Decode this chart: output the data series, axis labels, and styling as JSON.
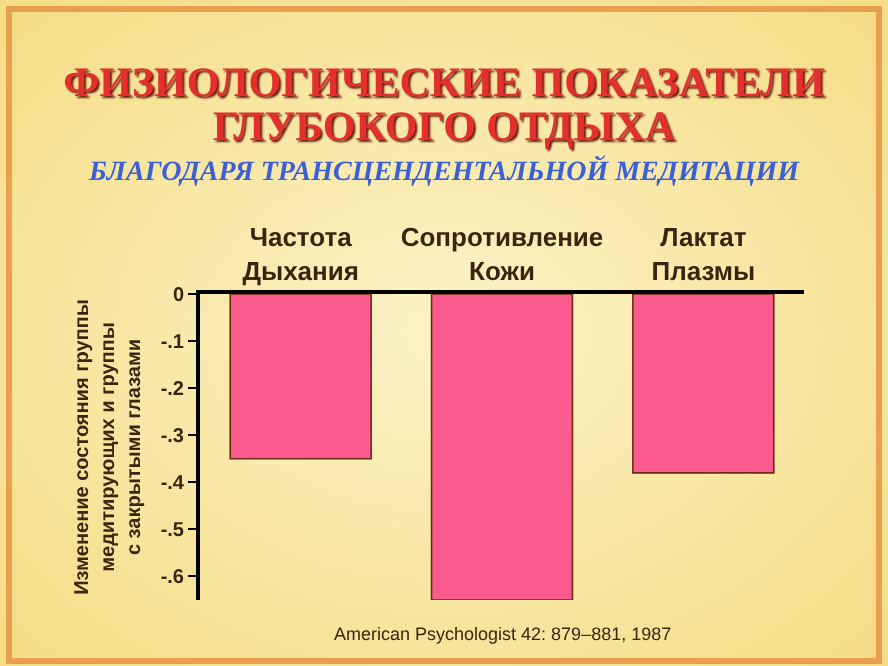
{
  "chart_data": {
    "type": "bar",
    "title": "ФИЗИОЛОГИЧЕСКИЕ ПОКАЗАТЕЛИ\nГЛУБОКОГО ОТДЫХА",
    "subtitle": "БЛАГОДАРЯ ТРАНСЦЕНДЕНТАЛЬНОЙ МЕДИТАЦИИ",
    "ylabel": "Изменение состояния группы\nмедитирующих и группы\nс закрытыми глазами",
    "categories": [
      "Частота\nДыхания",
      "Сопротивление\nКожи",
      "Лактат\nПлазмы"
    ],
    "values": [
      -0.35,
      -0.65,
      -0.38
    ],
    "color": "#fb5a8e",
    "ylim": [
      -0.65,
      0
    ],
    "yticks": [
      0,
      {
        "value": -0.1,
        "label": "-.1"
      },
      {
        "value": -0.2,
        "label": "-.2"
      },
      {
        "value": -0.3,
        "label": "-.3"
      },
      {
        "value": -0.4,
        "label": "-.4"
      },
      {
        "value": -0.5,
        "label": "-.5"
      },
      {
        "value": -0.6,
        "label": "-.6"
      }
    ],
    "annotations": [
      "American Psychologist 42: 879–881, 1987"
    ],
    "grid": false,
    "legend": false
  }
}
